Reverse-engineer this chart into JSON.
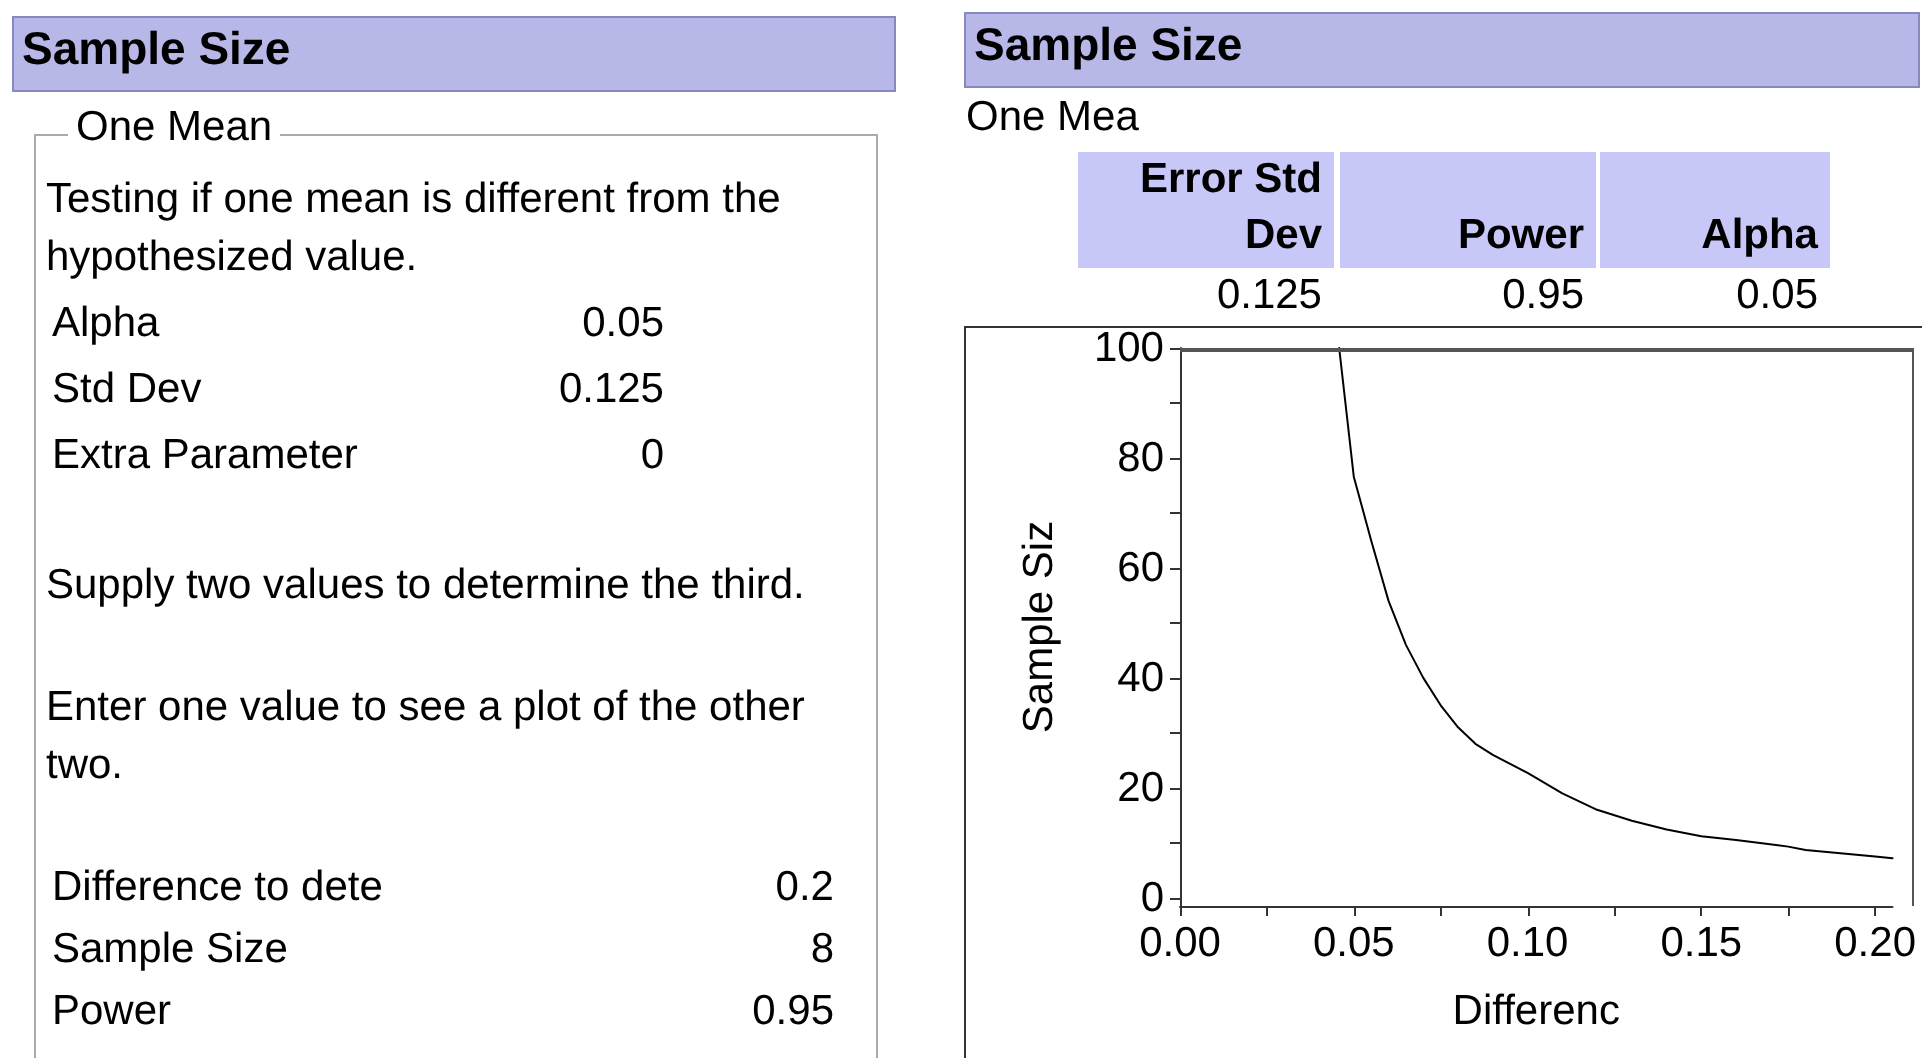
{
  "chart_data": [
    {
      "type": "other",
      "title": "Sample Size",
      "subtitle": "One Mean",
      "annotations": [
        "Testing if one mean is different from the hypothesized value.",
        "Alpha",
        "0.05",
        "Std Dev",
        "0.125",
        "Extra Parameter",
        "0",
        "Supply two values to determine the third.",
        "Enter one value to see a plot of the other two.",
        "Difference to dete",
        "0.2",
        "Sample Size",
        "8",
        "Power",
        "0.95"
      ]
    },
    {
      "type": "line",
      "title": "Sample Size",
      "subtitle": "One Mea",
      "annotations": [
        "Error Std Dev",
        "Power",
        "Alpha",
        "0.125",
        "0.95",
        "0.05"
      ],
      "xlabel": "Differenc",
      "ylabel": "Sample Siz",
      "series": [
        {
          "color": "#000000",
          "x": [
            0.0458,
            0.05,
            0.055,
            0.06,
            0.065,
            0.07,
            0.075,
            0.08,
            0.085,
            0.09,
            0.1,
            0.11,
            0.12,
            0.13,
            0.14,
            0.15,
            0.16,
            0.175,
            0.18,
            0.19,
            0.2,
            0.205
          ],
          "values": [
            100,
            76.6,
            65,
            54,
            46,
            40,
            35,
            31,
            28,
            26,
            22.7,
            19,
            16,
            14,
            12.4,
            11.2,
            10.5,
            9.3,
            8.7,
            8.1,
            7.5,
            7.2
          ]
        }
      ],
      "xlim": [
        0,
        0.205
      ],
      "ylim": [
        -1.5,
        100
      ],
      "xticks": [
        {
          "value": 0,
          "label": "0.00"
        },
        {
          "value": 0.025,
          "label": null
        },
        {
          "value": 0.05,
          "label": "0.05"
        },
        {
          "value": 0.075,
          "label": null
        },
        {
          "value": 0.1,
          "label": "0.10"
        },
        {
          "value": 0.125,
          "label": null
        },
        {
          "value": 0.15,
          "label": "0.15"
        },
        {
          "value": 0.175,
          "label": null
        },
        {
          "value": 0.2,
          "label": "0.20"
        }
      ],
      "yticks": [
        0,
        {
          "value": 10,
          "label": null
        },
        20,
        {
          "value": 30,
          "label": null
        },
        40,
        {
          "value": 50,
          "label": null
        },
        60,
        {
          "value": 70,
          "label": null
        },
        80,
        {
          "value": 90,
          "label": null
        },
        100
      ],
      "marker": "none",
      "line_style": "solid"
    }
  ]
}
